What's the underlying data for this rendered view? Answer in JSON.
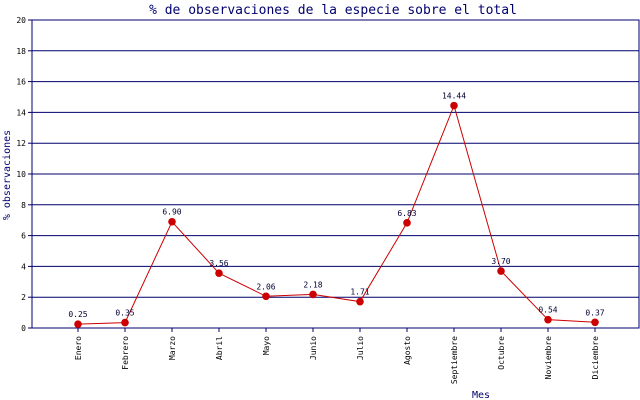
{
  "chart_data": {
    "type": "line",
    "title": "% de observaciones de la especie sobre el total",
    "xlabel": "Mes",
    "ylabel": "% observaciones",
    "ylim": [
      0,
      20
    ],
    "yticks": [
      "0",
      "2",
      "4",
      "6",
      "8",
      "10",
      "12",
      "14",
      "16",
      "18",
      "20"
    ],
    "grid": true,
    "categories": [
      "Enero",
      "Febrero",
      "Marzo",
      "Abril",
      "Mayo",
      "Junio",
      "Julio",
      "Agosto",
      "Septiembre",
      "Octubre",
      "Noviembre",
      "Diciembre"
    ],
    "series": [
      {
        "values": [
          0.25,
          0.35,
          6.9,
          3.56,
          2.06,
          2.18,
          1.71,
          6.83,
          14.44,
          3.7,
          0.54,
          0.37
        ],
        "labels": [
          "0.25",
          "0.35",
          "6.90",
          "3.56",
          "2.06",
          "2.18",
          "1.71",
          "6.83",
          "14.44",
          "3.70",
          "0.54",
          "0.37"
        ]
      }
    ],
    "colors": {
      "line": "#cc0000",
      "marker": "#cc0000",
      "grid": "#00006e",
      "frame": "#00006e",
      "text": "#00006e"
    }
  }
}
